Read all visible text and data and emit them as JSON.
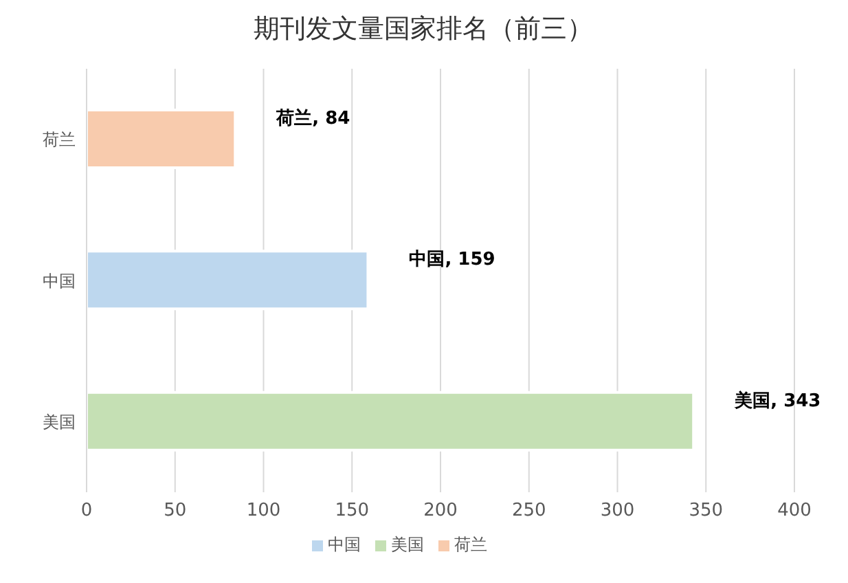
{
  "chart_data": {
    "type": "bar",
    "title": "期刊发文量国家排名（前三）",
    "orientation": "horizontal",
    "stacked": true,
    "categories": [
      "荷兰",
      "中国",
      "美国"
    ],
    "series": [
      {
        "name": "美国",
        "color": "#c5e0b4",
        "values": [
          null,
          null,
          343
        ],
        "value_labels": [
          null,
          null,
          "美国, 343"
        ]
      },
      {
        "name": "中国",
        "color": "#bdd7ee",
        "values": [
          null,
          159,
          null
        ],
        "value_labels": [
          null,
          "中国, 159",
          null
        ]
      },
      {
        "name": "荷兰",
        "color": "#f8cbad",
        "values": [
          84,
          null,
          null
        ],
        "value_labels": [
          "荷兰, 84",
          null,
          null
        ]
      }
    ],
    "xlim": [
      0,
      400
    ],
    "xticks": [
      0,
      50,
      100,
      150,
      200,
      250,
      300,
      350,
      400
    ],
    "grid": "x",
    "legend": "bottom"
  }
}
